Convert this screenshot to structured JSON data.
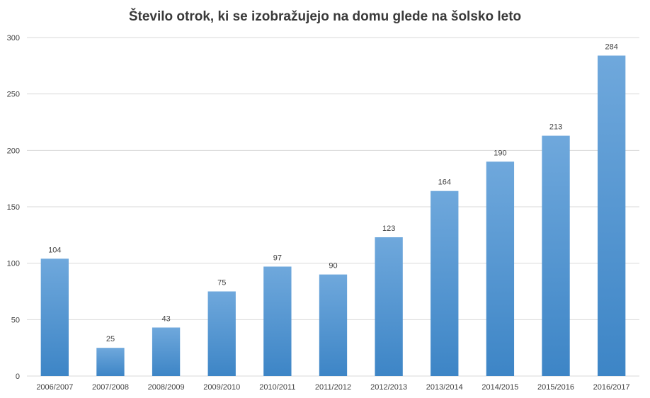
{
  "chart_data": {
    "type": "bar",
    "title": "Število otrok, ki se izobražujejo  na domu glede na šolsko leto",
    "xlabel": "",
    "ylabel": "",
    "categories": [
      "2006/2007",
      "2007/2008",
      "2008/2009",
      "2009/2010",
      "2010/2011",
      "2011/2012",
      "2012/2013",
      "2013/2014",
      "2014/2015",
      "2015/2016",
      "2016/2017"
    ],
    "values": [
      104,
      25,
      43,
      75,
      97,
      90,
      123,
      164,
      190,
      213,
      284
    ],
    "ylim": [
      0,
      300
    ],
    "yticks": [
      0,
      50,
      100,
      150,
      200,
      250,
      300
    ],
    "grid": true,
    "legend": "none",
    "data_labels": true,
    "colors": {
      "bar_top": "#6fa8dc",
      "bar_bottom": "#3d85c6",
      "grid": "#d9d9d9",
      "text": "#404040"
    }
  }
}
